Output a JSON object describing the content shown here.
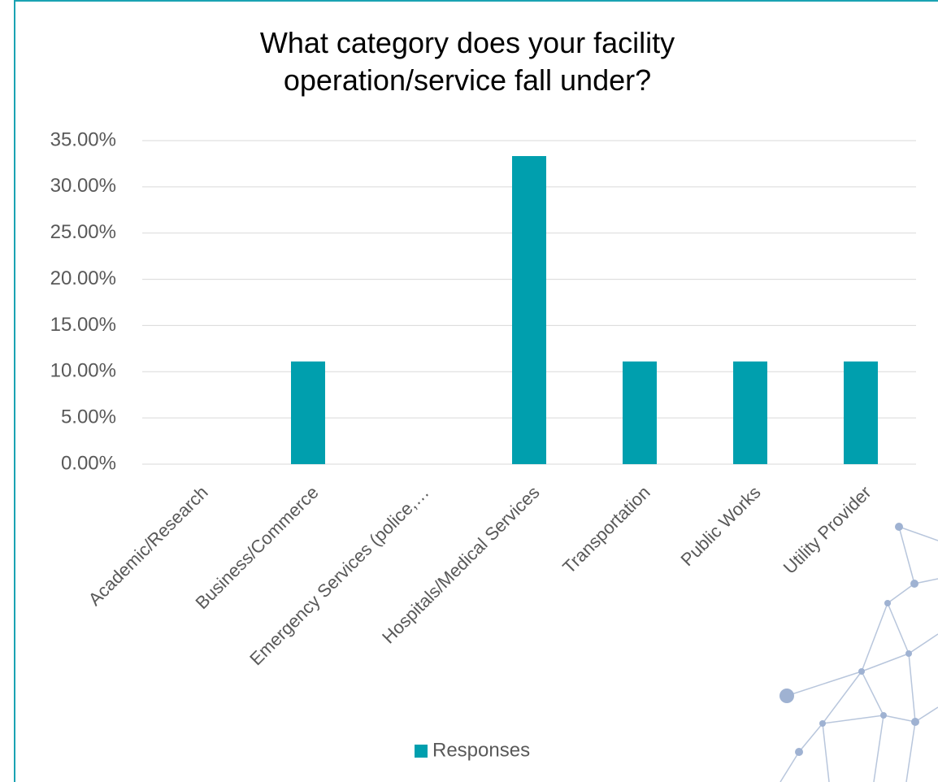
{
  "chart_data": {
    "type": "bar",
    "title": "What category does your facility operation/service fall under?",
    "categories": [
      "Academic/Research",
      "Business/Commerce",
      "Emergency Services (police,…",
      "Hospitals/Medical Services",
      "Transportation",
      "Public Works",
      "Utility Provider"
    ],
    "series": [
      {
        "name": "Responses",
        "color": "#009fae",
        "values": [
          0,
          11.11,
          0,
          33.33,
          11.11,
          11.11,
          11.11
        ]
      }
    ],
    "ylim": [
      0,
      35
    ],
    "yticks": [
      {
        "value": 0,
        "label": "0.00%"
      },
      {
        "value": 5,
        "label": "5.00%"
      },
      {
        "value": 10,
        "label": "10.00%"
      },
      {
        "value": 15,
        "label": "15.00%"
      },
      {
        "value": 20,
        "label": "20.00%"
      },
      {
        "value": 25,
        "label": "25.00%"
      },
      {
        "value": 30,
        "label": "30.00%"
      },
      {
        "value": 35,
        "label": "35.00%"
      }
    ],
    "grid": true,
    "legend": "bottom"
  }
}
